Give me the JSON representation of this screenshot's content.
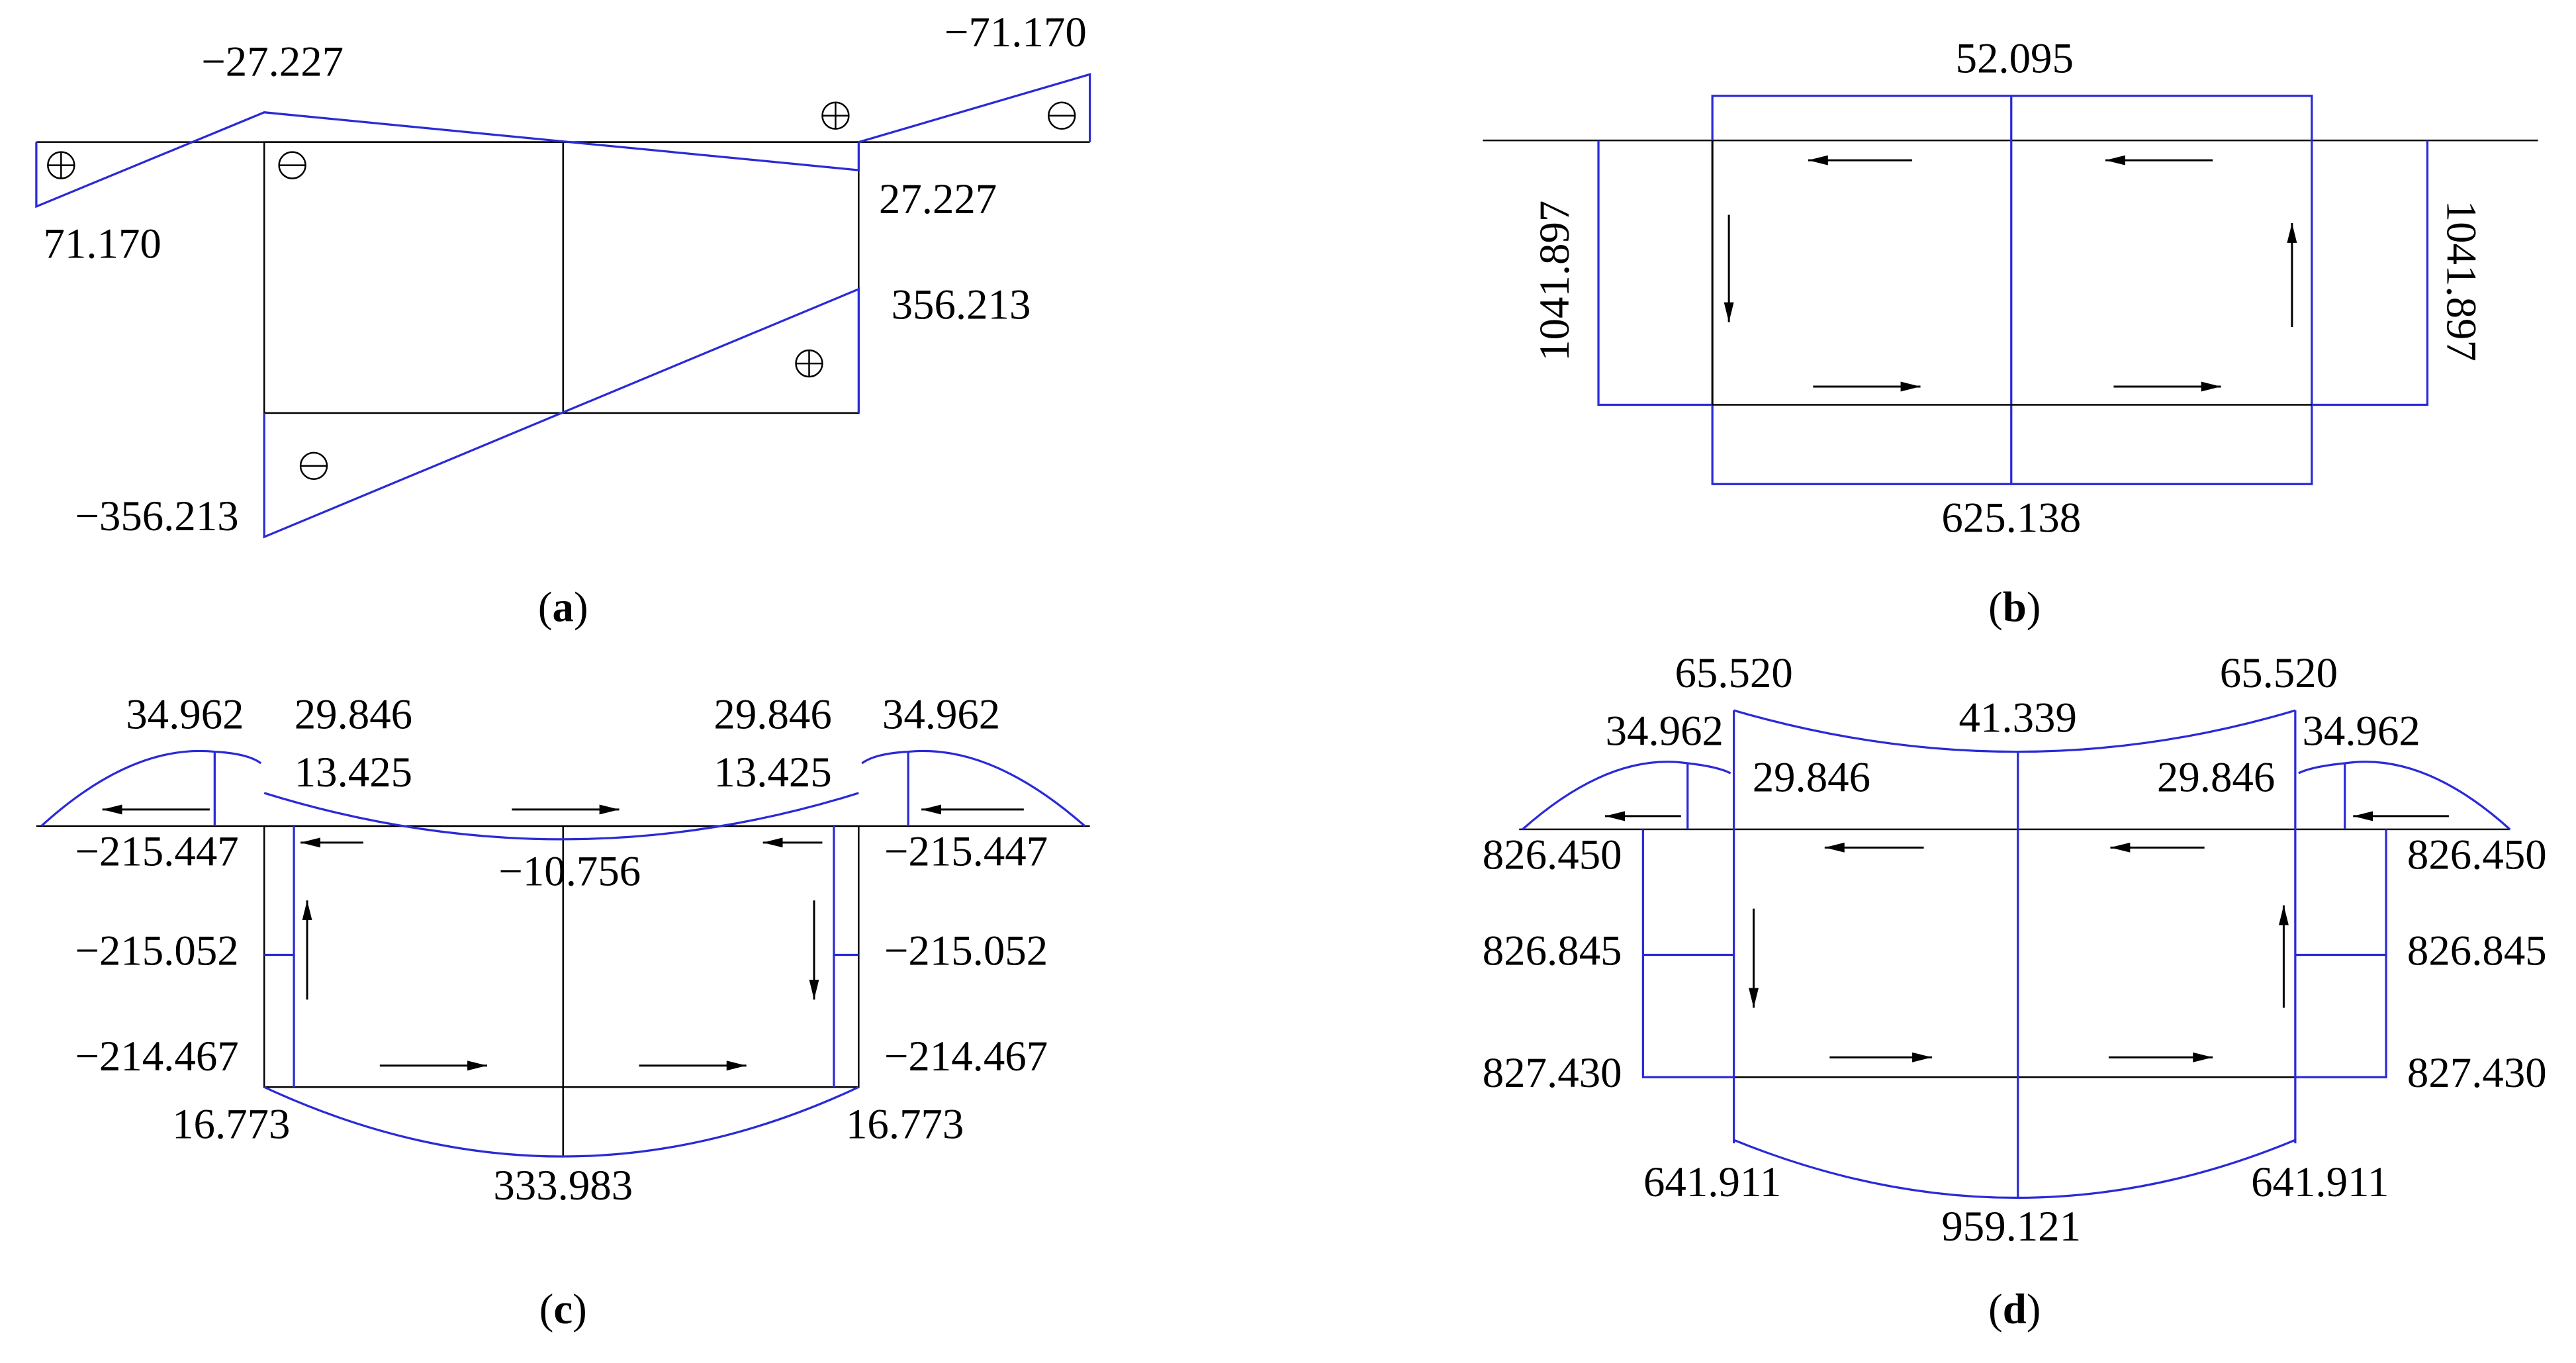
{
  "panels": [
    {
      "labels": [
        "−27.227",
        "−71.170",
        "71.170",
        "27.227",
        "356.213",
        "−356.213"
      ],
      "caption": {
        "open": "(",
        "letter": "a",
        "close": ")"
      }
    },
    {
      "labels": [
        "52.095",
        "625.138",
        "1041.897",
        "1041.897"
      ],
      "caption": {
        "open": "(",
        "letter": "b",
        "close": ")"
      }
    },
    {
      "labels": [
        "34.962",
        "29.846",
        "13.425",
        "29.846",
        "34.962",
        "13.425",
        "−215.447",
        "−10.756",
        "−215.447",
        "−215.052",
        "−215.052",
        "−214.467",
        "−214.467",
        "16.773",
        "16.773",
        "333.983"
      ],
      "caption": {
        "open": "(",
        "letter": "c",
        "close": ")"
      }
    },
    {
      "labels": [
        "65.520",
        "41.339",
        "65.520",
        "34.962",
        "34.962",
        "29.846",
        "29.846",
        "826.450",
        "826.450",
        "826.845",
        "826.845",
        "827.430",
        "827.430",
        "641.911",
        "959.121",
        "641.911"
      ],
      "caption": {
        "open": "(",
        "letter": "d",
        "close": ")"
      }
    }
  ]
}
